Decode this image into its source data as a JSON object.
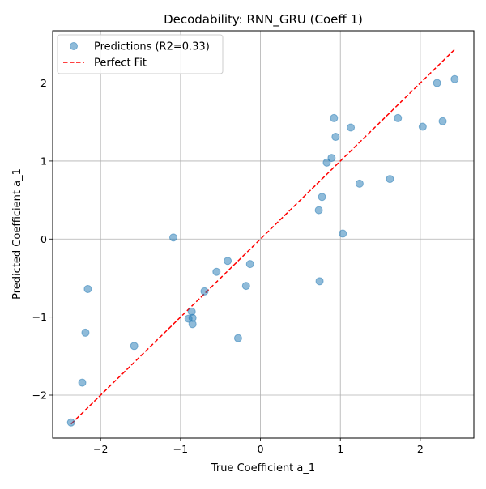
{
  "chart_data": {
    "type": "scatter",
    "title": "Decodability: RNN_GRU (Coeff 1)",
    "xlabel": "True Coefficient a_1",
    "ylabel": "Predicted Coefficient a_1",
    "xlim": [
      -2.6,
      2.67
    ],
    "ylim": [
      -2.55,
      2.67
    ],
    "xticks": [
      -2,
      -1,
      0,
      1,
      2
    ],
    "yticks": [
      -2,
      -1,
      0,
      1,
      2
    ],
    "grid": true,
    "legend_position": "upper-left",
    "colors": {
      "points": "#1f77b4",
      "fit_line": "#ff0000",
      "grid": "#b0b0b0"
    },
    "series": [
      {
        "name": "Predictions (R2=0.33)",
        "kind": "scatter",
        "points": [
          [
            -2.37,
            -2.35
          ],
          [
            -2.23,
            -1.84
          ],
          [
            -2.19,
            -1.2
          ],
          [
            -2.16,
            -0.64
          ],
          [
            -1.58,
            -1.37
          ],
          [
            -1.09,
            0.02
          ],
          [
            -0.9,
            -1.02
          ],
          [
            -0.86,
            -0.93
          ],
          [
            -0.85,
            -1.01
          ],
          [
            -0.85,
            -1.09
          ],
          [
            -0.7,
            -0.67
          ],
          [
            -0.55,
            -0.42
          ],
          [
            -0.41,
            -0.28
          ],
          [
            -0.28,
            -1.27
          ],
          [
            -0.18,
            -0.6
          ],
          [
            -0.13,
            -0.32
          ],
          [
            0.73,
            0.37
          ],
          [
            0.74,
            -0.54
          ],
          [
            0.77,
            0.54
          ],
          [
            0.83,
            0.98
          ],
          [
            0.89,
            1.04
          ],
          [
            0.92,
            1.55
          ],
          [
            0.94,
            1.31
          ],
          [
            1.03,
            0.07
          ],
          [
            1.13,
            1.43
          ],
          [
            1.24,
            0.71
          ],
          [
            1.62,
            0.77
          ],
          [
            1.72,
            1.55
          ],
          [
            2.03,
            1.44
          ],
          [
            2.21,
            2.0
          ],
          [
            2.28,
            1.51
          ],
          [
            2.43,
            2.05
          ]
        ]
      },
      {
        "name": "Perfect Fit",
        "kind": "line",
        "points": [
          [
            -2.37,
            -2.37
          ],
          [
            2.43,
            2.43
          ]
        ]
      }
    ]
  }
}
